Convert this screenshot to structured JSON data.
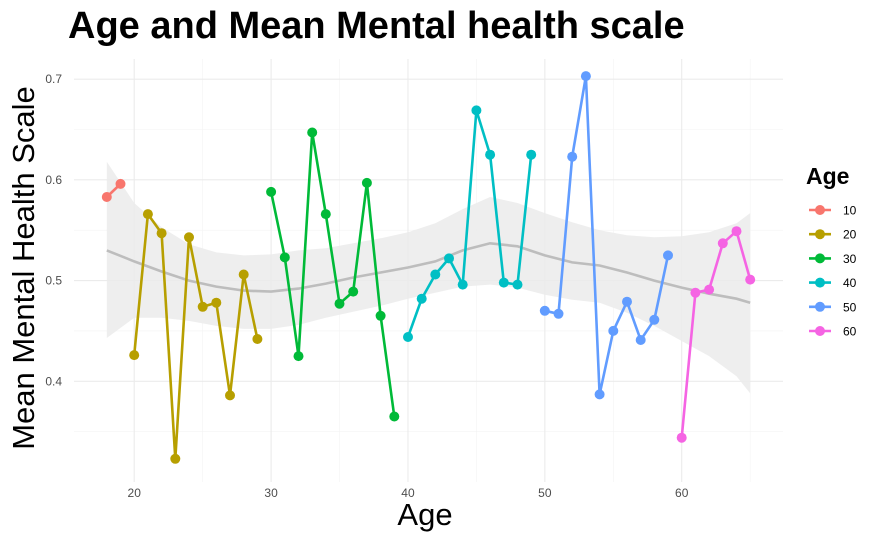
{
  "chart_data": {
    "type": "line",
    "title": "Age and Mean Mental health scale",
    "xlabel": "Age",
    "ylabel": "Mean Mental Health Scale",
    "xlim": [
      15.6,
      67.4
    ],
    "ylim": [
      0.3,
      0.72
    ],
    "x_ticks": [
      20,
      30,
      40,
      50,
      60
    ],
    "y_ticks": [
      0.4,
      0.5,
      0.6,
      0.7
    ],
    "x_tick_labels": [
      "20",
      "30",
      "40",
      "50",
      "60"
    ],
    "y_tick_labels": [
      "0.4",
      "0.5",
      "0.6",
      "0.7"
    ],
    "grid": true,
    "legend": {
      "title": "Age",
      "position": "right"
    },
    "series": [
      {
        "name": "10",
        "color": "#F8766D",
        "x": [
          18,
          19
        ],
        "y": [
          0.583,
          0.596
        ]
      },
      {
        "name": "20",
        "color": "#B79F00",
        "x": [
          20,
          21,
          22,
          23,
          24,
          25,
          26,
          27,
          28,
          29
        ],
        "y": [
          0.426,
          0.566,
          0.547,
          0.323,
          0.543,
          0.474,
          0.478,
          0.386,
          0.506,
          0.442
        ]
      },
      {
        "name": "30",
        "color": "#00BA38",
        "x": [
          30,
          31,
          32,
          33,
          34,
          35,
          36,
          37,
          38,
          39
        ],
        "y": [
          0.588,
          0.523,
          0.425,
          0.647,
          0.566,
          0.477,
          0.489,
          0.597,
          0.465,
          0.365
        ]
      },
      {
        "name": "40",
        "color": "#00BFC4",
        "x": [
          40,
          41,
          42,
          43,
          44,
          45,
          46,
          47,
          48,
          49
        ],
        "y": [
          0.444,
          0.482,
          0.506,
          0.522,
          0.496,
          0.669,
          0.625,
          0.498,
          0.496,
          0.625
        ]
      },
      {
        "name": "50",
        "color": "#619CFF",
        "x": [
          50,
          51,
          52,
          53,
          54,
          55,
          56,
          57,
          58,
          59
        ],
        "y": [
          0.47,
          0.467,
          0.623,
          0.703,
          0.387,
          0.45,
          0.479,
          0.441,
          0.461,
          0.525
        ]
      },
      {
        "name": "60",
        "color": "#F564E3",
        "x": [
          60,
          61,
          62,
          63,
          64,
          65
        ],
        "y": [
          0.344,
          0.488,
          0.491,
          0.537,
          0.549,
          0.501
        ]
      }
    ],
    "smooth": {
      "color": "#bdbdbd",
      "band_color": "#ebebeb",
      "x": [
        18,
        20,
        22,
        24,
        26,
        28,
        30,
        32,
        34,
        36,
        38,
        40,
        42,
        44,
        46,
        48,
        50,
        52,
        54,
        56,
        58,
        60,
        62,
        64,
        65
      ],
      "y": [
        0.53,
        0.519,
        0.509,
        0.5,
        0.494,
        0.49,
        0.489,
        0.492,
        0.497,
        0.503,
        0.508,
        0.513,
        0.519,
        0.53,
        0.537,
        0.534,
        0.525,
        0.518,
        0.515,
        0.508,
        0.5,
        0.493,
        0.487,
        0.482,
        0.478
      ],
      "lower": [
        0.443,
        0.463,
        0.463,
        0.46,
        0.455,
        0.452,
        0.452,
        0.456,
        0.463,
        0.469,
        0.475,
        0.482,
        0.488,
        0.494,
        0.496,
        0.493,
        0.486,
        0.481,
        0.478,
        0.468,
        0.455,
        0.44,
        0.425,
        0.405,
        0.388
      ],
      "upper": [
        0.618,
        0.577,
        0.553,
        0.536,
        0.528,
        0.525,
        0.526,
        0.53,
        0.532,
        0.537,
        0.542,
        0.548,
        0.557,
        0.571,
        0.583,
        0.577,
        0.567,
        0.558,
        0.55,
        0.545,
        0.543,
        0.544,
        0.548,
        0.557,
        0.567
      ]
    }
  }
}
